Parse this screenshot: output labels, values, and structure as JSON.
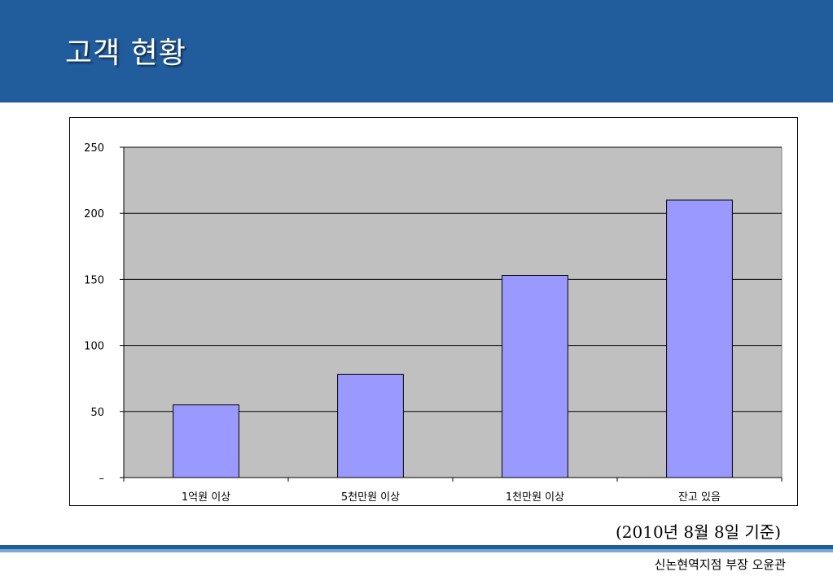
{
  "slide": {
    "title": "고객 현황",
    "note": "(2010년 8월 8일 기준)",
    "footer": "신논현역지점 부장 오윤관"
  },
  "colors": {
    "header": "#215d9c",
    "plot_area": "#c0c0c0",
    "bar_fill": "#9999ff"
  },
  "chart_data": {
    "type": "bar",
    "categories": [
      "1억원 이상",
      "5천만원 이상",
      "1천만원 이상",
      "잔고 있음"
    ],
    "values": [
      55,
      78,
      153,
      210
    ],
    "ylim": [
      0,
      250
    ],
    "yticks": [
      {
        "value": 0,
        "label": "–"
      },
      {
        "value": 50,
        "label": "50"
      },
      {
        "value": 100,
        "label": "100"
      },
      {
        "value": 150,
        "label": "150"
      },
      {
        "value": 200,
        "label": "200"
      },
      {
        "value": 250,
        "label": "250"
      }
    ],
    "grid": true,
    "legend": "none"
  }
}
